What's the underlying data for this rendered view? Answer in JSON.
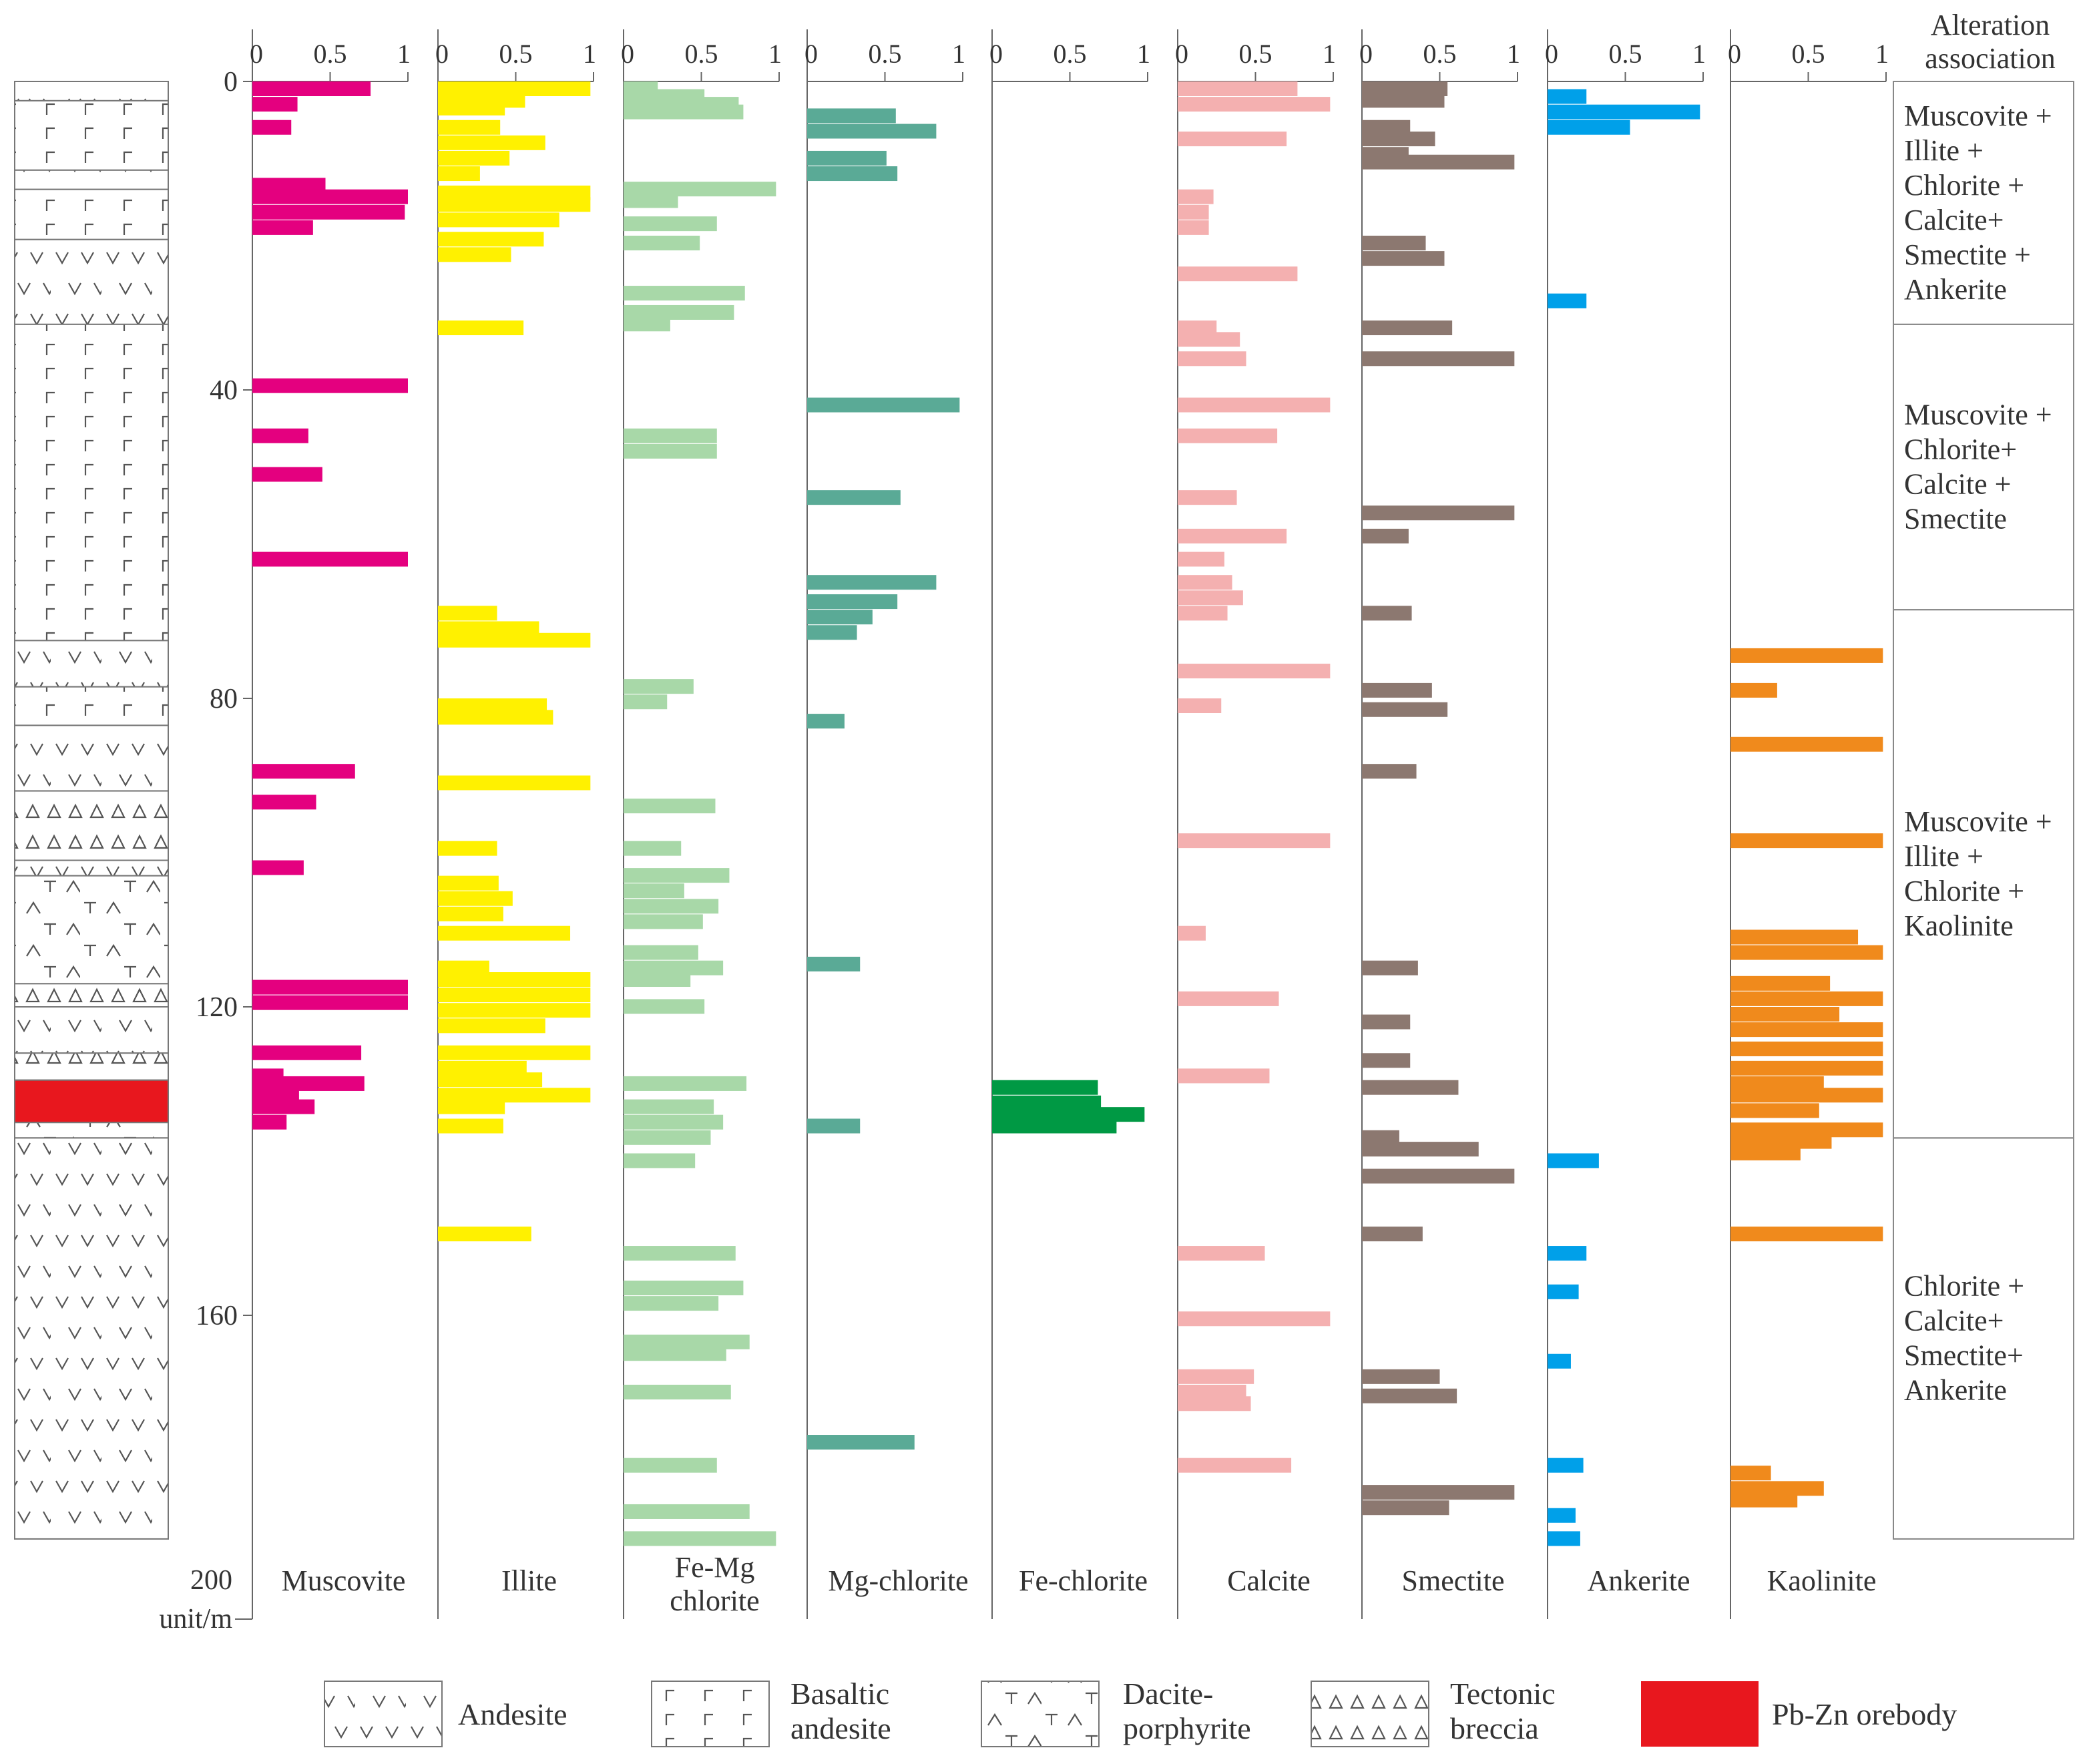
{
  "chart_data": {
    "type": "bar",
    "orientation": "horizontal",
    "title": "",
    "y_axis": {
      "label_value": "200",
      "label_unit": "unit/m",
      "range": [
        0,
        200
      ],
      "ticks": [
        "0",
        "40",
        "80",
        "120",
        "160",
        "200"
      ]
    },
    "x_ticks": [
      "0",
      "0.5",
      "1"
    ],
    "xlim": [
      0,
      1
    ],
    "header_label": [
      "Alteration",
      "association"
    ],
    "series": [
      {
        "name": "Muscovite",
        "label": [
          "Muscovite"
        ],
        "color": "#e4007f",
        "bars": [
          [
            0,
            0.76
          ],
          [
            2,
            0.29
          ],
          [
            5,
            0.25
          ],
          [
            12.5,
            0.47
          ],
          [
            14,
            1.0
          ],
          [
            16,
            0.98
          ],
          [
            18,
            0.39
          ],
          [
            38.5,
            1.0
          ],
          [
            45,
            0.36
          ],
          [
            50,
            0.45
          ],
          [
            61,
            1.0
          ],
          [
            88.5,
            0.66
          ],
          [
            92.5,
            0.41
          ],
          [
            101,
            0.33
          ],
          [
            116.5,
            1.0
          ],
          [
            118.5,
            1.0
          ],
          [
            125,
            0.7
          ],
          [
            128,
            0.2
          ],
          [
            129,
            0.72
          ],
          [
            130.5,
            0.3
          ],
          [
            132,
            0.4
          ],
          [
            134,
            0.22
          ]
        ]
      },
      {
        "name": "Illite",
        "label": [
          "Illite"
        ],
        "color": "#fff100",
        "bars": [
          [
            0,
            0.98
          ],
          [
            1.5,
            0.56
          ],
          [
            2.5,
            0.43
          ],
          [
            5,
            0.4
          ],
          [
            7,
            0.69
          ],
          [
            9,
            0.46
          ],
          [
            11,
            0.27
          ],
          [
            13.5,
            0.98
          ],
          [
            15,
            0.98
          ],
          [
            17,
            0.78
          ],
          [
            19.5,
            0.68
          ],
          [
            21.5,
            0.47
          ],
          [
            31,
            0.55
          ],
          [
            68,
            0.38
          ],
          [
            70,
            0.65
          ],
          [
            71.5,
            0.98
          ],
          [
            80,
            0.7
          ],
          [
            81.5,
            0.74
          ],
          [
            90,
            0.98
          ],
          [
            98.5,
            0.38
          ],
          [
            103,
            0.39
          ],
          [
            105,
            0.48
          ],
          [
            107,
            0.42
          ],
          [
            109.5,
            0.85
          ],
          [
            114,
            0.33
          ],
          [
            115.5,
            0.98
          ],
          [
            117.5,
            0.98
          ],
          [
            119.5,
            0.98
          ],
          [
            121.5,
            0.69
          ],
          [
            125,
            0.98
          ],
          [
            127,
            0.57
          ],
          [
            128.5,
            0.67
          ],
          [
            130.5,
            0.98
          ],
          [
            132,
            0.43
          ],
          [
            134.5,
            0.42
          ],
          [
            148.5,
            0.6
          ]
        ]
      },
      {
        "name": "Fe-Mg chlorite",
        "label": [
          "Fe-Mg",
          "chlorite"
        ],
        "color": "#a8d8a8",
        "bars": [
          [
            0,
            0.22
          ],
          [
            1,
            0.52
          ],
          [
            2,
            0.74
          ],
          [
            3,
            0.77
          ],
          [
            13,
            0.98
          ],
          [
            14.5,
            0.35
          ],
          [
            17.5,
            0.6
          ],
          [
            20,
            0.49
          ],
          [
            26.5,
            0.78
          ],
          [
            29,
            0.71
          ],
          [
            30.5,
            0.3
          ],
          [
            45,
            0.6
          ],
          [
            47,
            0.6
          ],
          [
            77.5,
            0.45
          ],
          [
            79.5,
            0.28
          ],
          [
            93,
            0.59
          ],
          [
            98.5,
            0.37
          ],
          [
            102,
            0.68
          ],
          [
            104,
            0.39
          ],
          [
            106,
            0.61
          ],
          [
            108,
            0.51
          ],
          [
            112,
            0.48
          ],
          [
            114,
            0.64
          ],
          [
            115.5,
            0.43
          ],
          [
            119,
            0.52
          ],
          [
            129,
            0.79
          ],
          [
            132,
            0.58
          ],
          [
            134,
            0.64
          ],
          [
            136,
            0.56
          ],
          [
            139,
            0.46
          ],
          [
            151,
            0.72
          ],
          [
            155.5,
            0.77
          ],
          [
            157.5,
            0.61
          ],
          [
            162.5,
            0.81
          ],
          [
            164,
            0.66
          ],
          [
            169,
            0.69
          ],
          [
            178.5,
            0.6
          ],
          [
            184.5,
            0.81
          ],
          [
            188,
            0.98
          ]
        ]
      },
      {
        "name": "Mg-chlorite",
        "label": [
          "Mg-chlorite"
        ],
        "color": "#5aaa96",
        "bars": [
          [
            3.5,
            0.57
          ],
          [
            5.5,
            0.83
          ],
          [
            9,
            0.51
          ],
          [
            11,
            0.58
          ],
          [
            41,
            0.98
          ],
          [
            53,
            0.6
          ],
          [
            64,
            0.83
          ],
          [
            66.5,
            0.58
          ],
          [
            68.5,
            0.42
          ],
          [
            70.5,
            0.32
          ],
          [
            82,
            0.24
          ],
          [
            113.5,
            0.34
          ],
          [
            134.5,
            0.34
          ],
          [
            175.5,
            0.69
          ]
        ]
      },
      {
        "name": "Fe-chlorite",
        "label": [
          "Fe-chlorite"
        ],
        "color": "#009944",
        "bars": [
          [
            129.5,
            0.68
          ],
          [
            131.5,
            0.7
          ],
          [
            133,
            0.98
          ],
          [
            134.5,
            0.8
          ]
        ]
      },
      {
        "name": "Calcite",
        "label": [
          "Calcite"
        ],
        "color": "#f4b0b0",
        "bars": [
          [
            0,
            0.77
          ],
          [
            2,
            0.98
          ],
          [
            6.5,
            0.7
          ],
          [
            14,
            0.23
          ],
          [
            16,
            0.2
          ],
          [
            18,
            0.2
          ],
          [
            24,
            0.77
          ],
          [
            31,
            0.25
          ],
          [
            32.5,
            0.4
          ],
          [
            35,
            0.44
          ],
          [
            41,
            0.98
          ],
          [
            45,
            0.64
          ],
          [
            53,
            0.38
          ],
          [
            58,
            0.7
          ],
          [
            61,
            0.3
          ],
          [
            64,
            0.35
          ],
          [
            66,
            0.42
          ],
          [
            68,
            0.32
          ],
          [
            75.5,
            0.98
          ],
          [
            80,
            0.28
          ],
          [
            97.5,
            0.98
          ],
          [
            109.5,
            0.18
          ],
          [
            118,
            0.65
          ],
          [
            128,
            0.59
          ],
          [
            151,
            0.56
          ],
          [
            159.5,
            0.98
          ],
          [
            167,
            0.49
          ],
          [
            169,
            0.44
          ],
          [
            170.5,
            0.47
          ],
          [
            178.5,
            0.73
          ]
        ]
      },
      {
        "name": "Smectite",
        "label": [
          "Smectite"
        ],
        "color": "#8c7870",
        "bars": [
          [
            0,
            0.55
          ],
          [
            1.5,
            0.53
          ],
          [
            5,
            0.31
          ],
          [
            6.5,
            0.47
          ],
          [
            8.5,
            0.3
          ],
          [
            9.5,
            0.98
          ],
          [
            20,
            0.41
          ],
          [
            22,
            0.53
          ],
          [
            31,
            0.58
          ],
          [
            35,
            0.98
          ],
          [
            55,
            0.98
          ],
          [
            58,
            0.3
          ],
          [
            68,
            0.32
          ],
          [
            78,
            0.45
          ],
          [
            80.5,
            0.55
          ],
          [
            88.5,
            0.35
          ],
          [
            114,
            0.36
          ],
          [
            121,
            0.31
          ],
          [
            126,
            0.31
          ],
          [
            129.5,
            0.62
          ],
          [
            136,
            0.24
          ],
          [
            137.5,
            0.75
          ],
          [
            141,
            0.98
          ],
          [
            148.5,
            0.39
          ],
          [
            167,
            0.5
          ],
          [
            169.5,
            0.61
          ],
          [
            182,
            0.98
          ],
          [
            184,
            0.56
          ]
        ]
      },
      {
        "name": "Ankerite",
        "label": [
          "Ankerite"
        ],
        "color": "#00a0e9",
        "bars": [
          [
            1,
            0.25
          ],
          [
            3,
            0.98
          ],
          [
            5,
            0.53
          ],
          [
            27.5,
            0.25
          ],
          [
            139,
            0.33
          ],
          [
            151,
            0.25
          ],
          [
            156,
            0.2
          ],
          [
            165,
            0.15
          ],
          [
            178.5,
            0.23
          ],
          [
            185,
            0.18
          ],
          [
            188,
            0.21
          ]
        ]
      },
      {
        "name": "Kaolinite",
        "label": [
          "Kaolinite"
        ],
        "color": "#f08a1c",
        "bars": [
          [
            73.5,
            0.98
          ],
          [
            78,
            0.3
          ],
          [
            85,
            0.98
          ],
          [
            97.5,
            0.98
          ],
          [
            110,
            0.82
          ],
          [
            112,
            0.98
          ],
          [
            116,
            0.64
          ],
          [
            118,
            0.98
          ],
          [
            120,
            0.7
          ],
          [
            122,
            0.98
          ],
          [
            124.5,
            0.98
          ],
          [
            127,
            0.98
          ],
          [
            129,
            0.6
          ],
          [
            130.5,
            0.98
          ],
          [
            132.5,
            0.57
          ],
          [
            135,
            0.98
          ],
          [
            136.5,
            0.65
          ],
          [
            138,
            0.45
          ],
          [
            148.5,
            0.98
          ],
          [
            179.5,
            0.26
          ],
          [
            181.5,
            0.6
          ],
          [
            183,
            0.43
          ]
        ]
      }
    ],
    "lithology_column": [
      {
        "from": 0,
        "to": 2.5,
        "rock": "andesite"
      },
      {
        "from": 2.5,
        "to": 11.5,
        "rock": "basaltic-andesite"
      },
      {
        "from": 11.5,
        "to": 14,
        "rock": "andesite"
      },
      {
        "from": 14,
        "to": 20.5,
        "rock": "basaltic-andesite"
      },
      {
        "from": 20.5,
        "to": 31.5,
        "rock": "andesite"
      },
      {
        "from": 31.5,
        "to": 72.5,
        "rock": "basaltic-andesite"
      },
      {
        "from": 72.5,
        "to": 78.5,
        "rock": "andesite"
      },
      {
        "from": 78.5,
        "to": 83.5,
        "rock": "basaltic-andesite"
      },
      {
        "from": 83.5,
        "to": 92,
        "rock": "andesite"
      },
      {
        "from": 92,
        "to": 101,
        "rock": "tectonic-breccia"
      },
      {
        "from": 101,
        "to": 103,
        "rock": "andesite"
      },
      {
        "from": 103,
        "to": 117,
        "rock": "dacite-porphyrite"
      },
      {
        "from": 117,
        "to": 120,
        "rock": "tectonic-breccia"
      },
      {
        "from": 120,
        "to": 126,
        "rock": "andesite"
      },
      {
        "from": 126,
        "to": 129.5,
        "rock": "tectonic-breccia"
      },
      {
        "from": 129.5,
        "to": 135,
        "rock": "pb-zn-orebody"
      },
      {
        "from": 135,
        "to": 137,
        "rock": "dacite-porphyrite"
      },
      {
        "from": 137,
        "to": 189,
        "rock": "andesite"
      }
    ],
    "alteration_associations": [
      {
        "from": 0,
        "to": 31.5,
        "lines": [
          "Muscovite +",
          "Illite +",
          "Chlorite +",
          "Calcite+",
          "Smectite +",
          "Ankerite"
        ]
      },
      {
        "from": 31.5,
        "to": 68.5,
        "lines": [
          "Muscovite +",
          "Chlorite+",
          "Calcite +",
          "Smectite"
        ]
      },
      {
        "from": 68.5,
        "to": 137,
        "lines": [
          "Muscovite +",
          "Illite +",
          "Chlorite +",
          "Kaolinite"
        ]
      },
      {
        "from": 137,
        "to": 189,
        "lines": [
          "Chlorite +",
          "Calcite+",
          "Smectite+",
          "Ankerite"
        ]
      }
    ],
    "legend": [
      {
        "key": "andesite",
        "label": [
          "Andesite"
        ]
      },
      {
        "key": "basaltic-andesite",
        "label": [
          "Basaltic",
          "andesite"
        ]
      },
      {
        "key": "dacite-porphyrite",
        "label": [
          "Dacite-",
          "porphyrite"
        ]
      },
      {
        "key": "tectonic-breccia",
        "label": [
          "Tectonic",
          "breccia"
        ]
      },
      {
        "key": "pb-zn-orebody",
        "label": [
          "Pb-Zn orebody"
        ],
        "color": "#e8171e"
      }
    ],
    "colors": {
      "axis": "#666666",
      "grid_box": "#888888",
      "orebody": "#e8171e",
      "pattern": "#555555"
    }
  }
}
